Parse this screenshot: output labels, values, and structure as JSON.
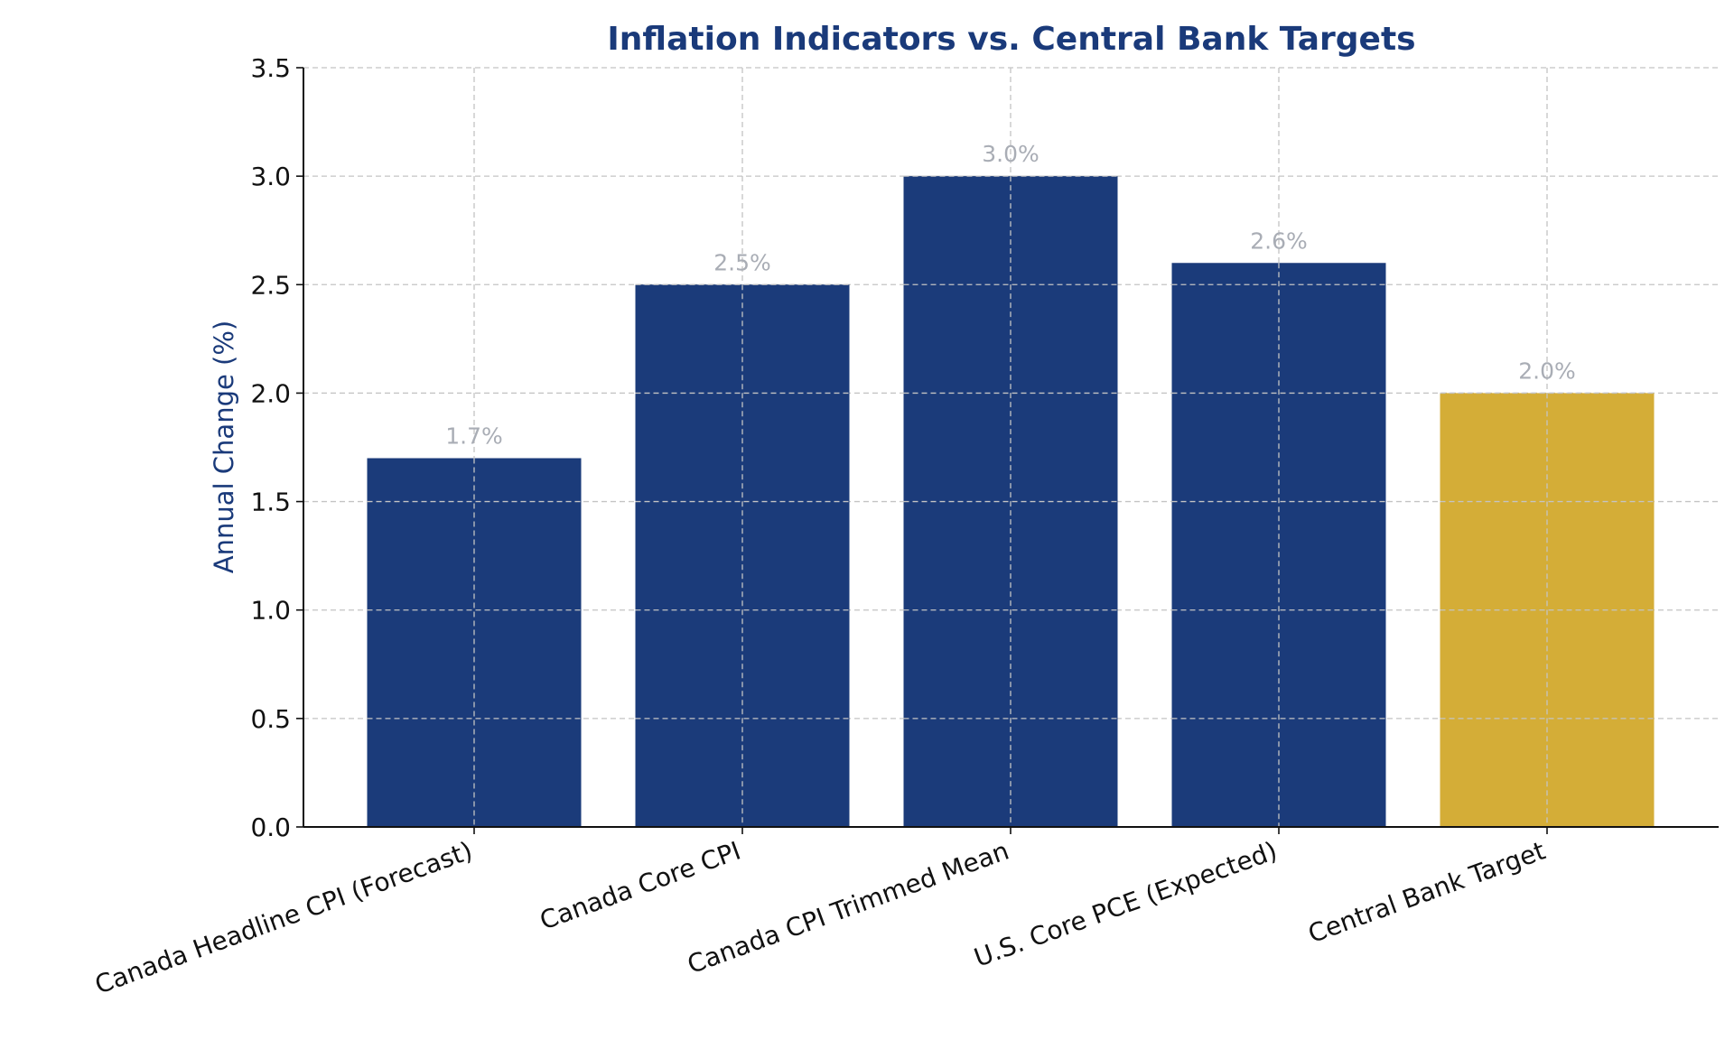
{
  "chart_data": {
    "type": "bar",
    "title": "Inflation Indicators vs. Central Bank Targets",
    "xlabel": "",
    "ylabel": "Annual Change (%)",
    "categories": [
      "Canada Headline CPI (Forecast)",
      "Canada Core CPI",
      "Canada CPI Trimmed Mean",
      "U.S. Core PCE (Expected)",
      "Central Bank Target"
    ],
    "values": [
      1.7,
      2.5,
      3.0,
      2.6,
      2.0
    ],
    "data_labels": [
      "1.7%",
      "2.5%",
      "3.0%",
      "2.6%",
      "2.0%"
    ],
    "bar_colors": [
      "#1b3b7a",
      "#1b3b7a",
      "#1b3b7a",
      "#1b3b7a",
      "#d4ad37"
    ],
    "ylim": [
      0,
      3.5
    ],
    "yticks": [
      0.0,
      0.5,
      1.0,
      1.5,
      2.0,
      2.5,
      3.0,
      3.5
    ],
    "ytick_labels": [
      "0.0",
      "0.5",
      "1.0",
      "1.5",
      "2.0",
      "2.5",
      "3.0",
      "3.5"
    ],
    "grid": true,
    "legend": "none"
  }
}
